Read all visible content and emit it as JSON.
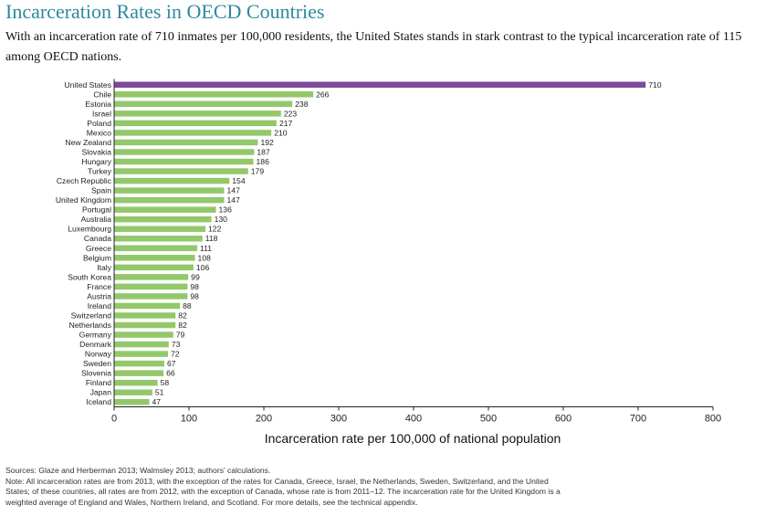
{
  "header": {
    "title": "Incarceration Rates in OECD Countries",
    "subtitle": "With an incarceration rate of 710 inmates per 100,000 residents, the United States stands in stark contrast to the typical incarceration rate of 115 among OECD nations."
  },
  "chart_data": {
    "type": "bar",
    "orientation": "horizontal",
    "categories": [
      "United States",
      "Chile",
      "Estonia",
      "Israel",
      "Poland",
      "Mexico",
      "New Zealand",
      "Slovakia",
      "Hungary",
      "Turkey",
      "Czech Republic",
      "Spain",
      "United Kingdom",
      "Portugal",
      "Australia",
      "Luxembourg",
      "Canada",
      "Greece",
      "Belgium",
      "Italy",
      "South Korea",
      "France",
      "Austria",
      "Ireland",
      "Switzerland",
      "Netherlands",
      "Germany",
      "Denmark",
      "Norway",
      "Sweden",
      "Slovenia",
      "Finland",
      "Japan",
      "Iceland"
    ],
    "values": [
      710,
      266,
      238,
      223,
      217,
      210,
      192,
      187,
      186,
      179,
      154,
      147,
      147,
      136,
      130,
      122,
      118,
      111,
      108,
      106,
      99,
      98,
      98,
      88,
      82,
      82,
      79,
      73,
      72,
      67,
      66,
      58,
      51,
      47
    ],
    "value_labels": [
      "710",
      "266",
      "238",
      "223",
      "217",
      "210",
      "192",
      "187",
      "186",
      "179",
      "154",
      "147",
      "147",
      "136",
      "130",
      "122",
      "118",
      "111",
      "108",
      "106",
      "99",
      "98",
      "98",
      "88",
      "82",
      "82",
      "79",
      "73",
      "72",
      "67",
      "66",
      "58",
      "51",
      "47"
    ],
    "highlight_category": "United States",
    "colors": {
      "highlight": "#7b4a9a",
      "bar": "#93c86a",
      "axis": "#222222"
    },
    "xlabel": "Incarceration rate per 100,000 of national population",
    "xlim": [
      0,
      800
    ],
    "xticks": [
      0,
      100,
      200,
      300,
      400,
      500,
      600,
      700,
      800
    ],
    "xtick_labels": [
      "0",
      "100",
      "200",
      "300",
      "400",
      "500",
      "600",
      "700",
      "800"
    ],
    "grid": false
  },
  "footer": {
    "sources": "Sources: Glaze and Herberman 2013; Walmsley 2013; authors' calculations.",
    "note": "Note: All incarceration rates are from 2013, with the exception of the rates for Canada, Greece, Israel, the Netherlands, Sweden, Switzerland, and the United States; of these countries, all rates are from 2012, with the exception of Canada, whose rate is from 2011–12. The incarceration rate for the United Kingdom is a weighted average of England and Wales, Northern Ireland, and Scotland. For more details, see the technical appendix."
  }
}
